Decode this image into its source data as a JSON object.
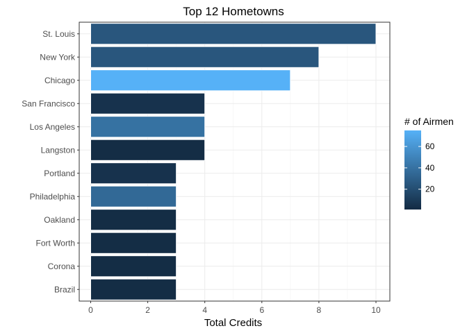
{
  "chart_data": {
    "type": "bar",
    "orientation": "horizontal",
    "title": "Top 12 Hometowns",
    "xlabel": "Total Credits",
    "ylabel": "",
    "xlim": [
      0,
      10.5
    ],
    "xticks": [
      "0",
      "2",
      "4",
      "6",
      "8",
      "10"
    ],
    "grid": true,
    "legend_placement": "right",
    "categories": [
      "St. Louis",
      "New York",
      "Chicago",
      "San Francisco",
      "Los Angeles",
      "Langston",
      "Portland",
      "Philadelphia",
      "Oakland",
      "Fort Worth",
      "Corona",
      "Brazil"
    ],
    "values": [
      10,
      8,
      7,
      4,
      4,
      4,
      3,
      3,
      3,
      3,
      3,
      3
    ],
    "fill_values": [
      25,
      25,
      75,
      5,
      40,
      2,
      5,
      35,
      2,
      2,
      2,
      2
    ],
    "legend": {
      "title": "# of Airmen",
      "ticks": [
        "20",
        "40",
        "60"
      ],
      "tick_values": [
        20,
        40,
        60
      ],
      "range": [
        1,
        75
      ],
      "low_color": "#132B43",
      "high_color": "#56B1F7"
    }
  }
}
